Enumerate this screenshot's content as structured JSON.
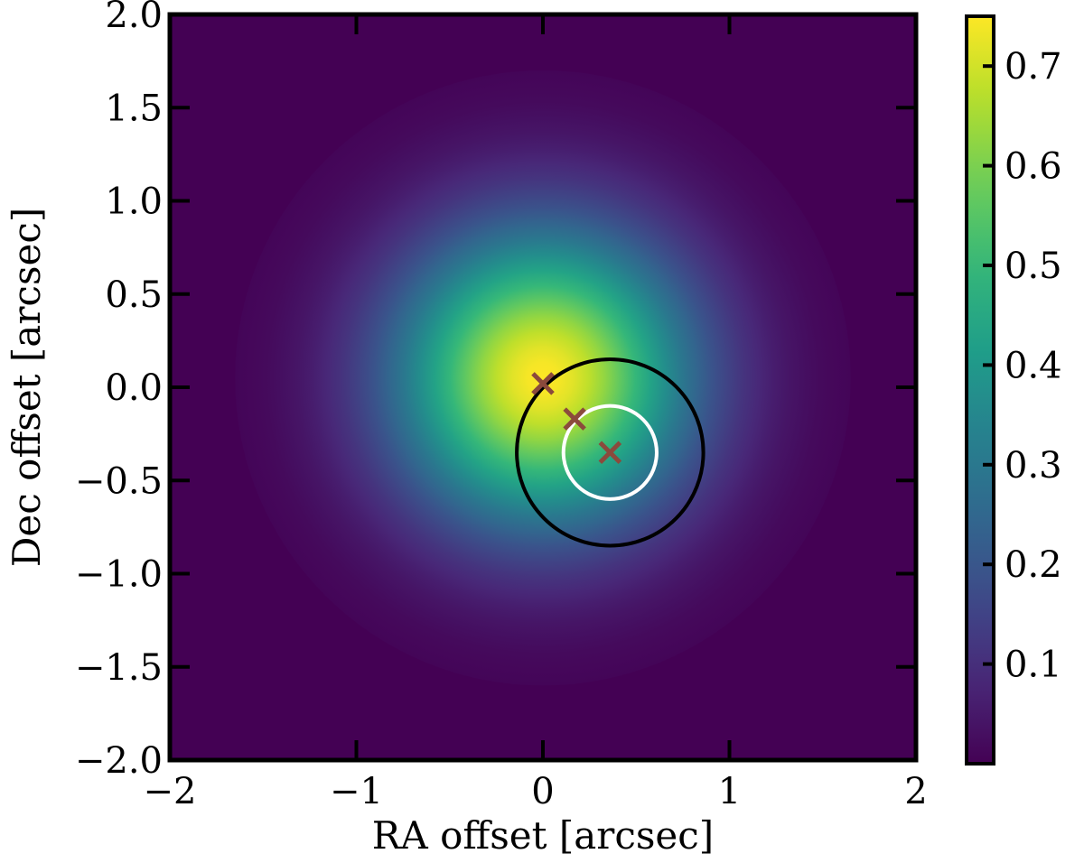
{
  "chart_data": {
    "type": "heatmap",
    "title": "",
    "xlabel": "RA offset [arcsec]",
    "ylabel": "Dec offset [arcsec]",
    "xlim": [
      -2.0,
      2.0
    ],
    "ylim": [
      -2.0,
      2.0
    ],
    "x_ticks": [
      -2,
      -1,
      0,
      1,
      2
    ],
    "x_tick_labels": [
      "−2",
      "−1",
      "0",
      "1",
      "2"
    ],
    "y_ticks": [
      -2.0,
      -1.5,
      -1.0,
      -0.5,
      0.0,
      0.5,
      1.0,
      1.5,
      2.0
    ],
    "y_tick_labels": [
      "−2.0",
      "−1.5",
      "−1.0",
      "−0.5",
      "0.0",
      "0.5",
      "1.0",
      "1.5",
      "2.0"
    ],
    "colormap": "viridis",
    "colorbar": {
      "range": [
        0.0,
        0.75
      ],
      "ticks": [
        0.1,
        0.2,
        0.3,
        0.4,
        0.5,
        0.6,
        0.7
      ],
      "tick_labels": [
        "0.1",
        "0.2",
        "0.3",
        "0.4",
        "0.5",
        "0.6",
        "0.7"
      ]
    },
    "field": {
      "peak_center": [
        0.0,
        0.05
      ],
      "peak_value": 0.75,
      "sigma_arcsec": 0.55
    },
    "markers": [
      {
        "x": 0.0,
        "y": 0.02,
        "symbol": "x",
        "color": "#8b4a3c"
      },
      {
        "x": 0.17,
        "y": -0.17,
        "symbol": "x",
        "color": "#8b4a3c"
      },
      {
        "x": 0.36,
        "y": -0.35,
        "symbol": "x",
        "color": "#8b4a3c"
      }
    ],
    "circles": [
      {
        "cx": 0.36,
        "cy": -0.35,
        "r": 0.5,
        "color": "#000000"
      },
      {
        "cx": 0.36,
        "cy": -0.35,
        "r": 0.25,
        "color": "#ffffff"
      }
    ],
    "grid": false,
    "legend": "none"
  }
}
